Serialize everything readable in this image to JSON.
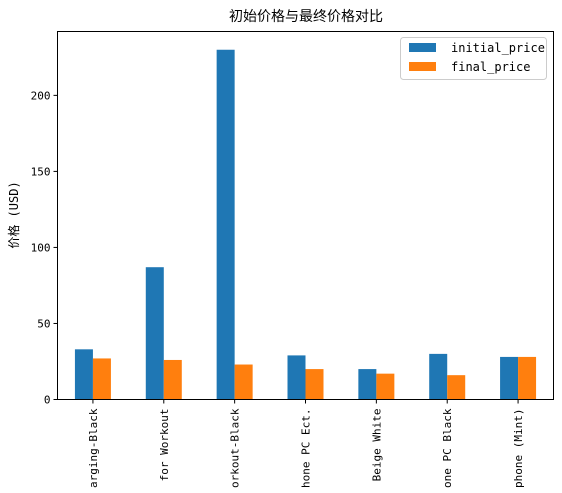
{
  "chart_data": {
    "type": "bar",
    "title": "初始价格与最终价格对比",
    "xlabel": "",
    "ylabel": "价格 (USD)",
    "ylim": [
      0,
      242
    ],
    "yticks": [
      0,
      50,
      100,
      150,
      200
    ],
    "grid": false,
    "legend_position": "top-right",
    "categories": [
      "arging-Black",
      "for Workout",
      "orkout-Black",
      "hone PC Ect.",
      "Beige White",
      "one PC Black",
      "phone (Mint)"
    ],
    "series": [
      {
        "name": "initial_price",
        "color": "#1f77b4",
        "values": [
          33,
          87,
          230,
          29,
          20,
          30,
          28
        ]
      },
      {
        "name": "final_price",
        "color": "#ff7f0e",
        "values": [
          27,
          26,
          23,
          20,
          17,
          16,
          28
        ]
      }
    ]
  }
}
